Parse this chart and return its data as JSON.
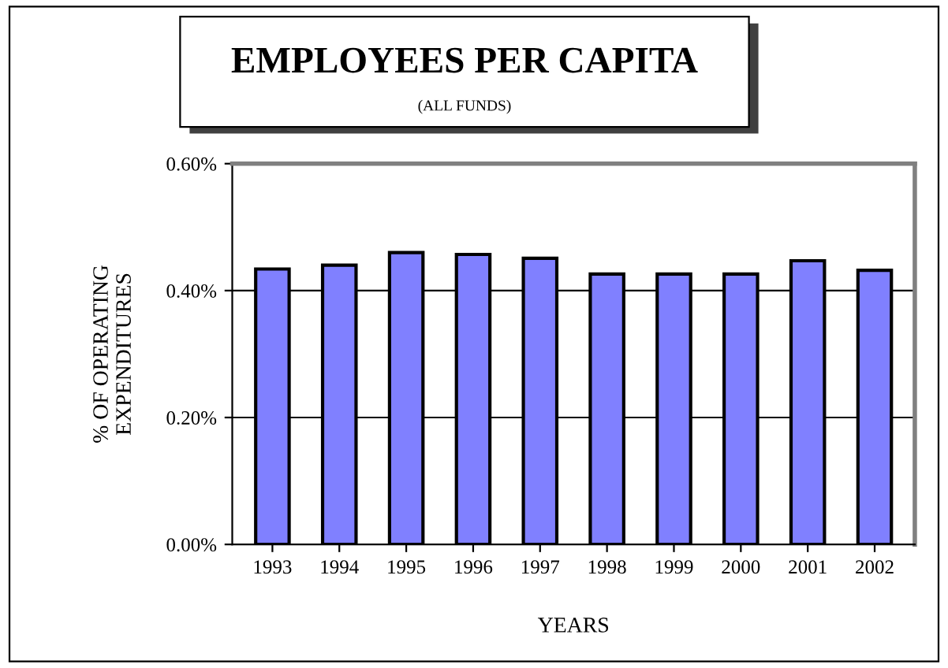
{
  "chart_data": {
    "type": "bar",
    "title": "EMPLOYEES PER CAPITA",
    "subtitle": "(ALL FUNDS)",
    "xlabel": "YEARS",
    "ylabel": "% OF OPERATING\nEXPENDITURES",
    "categories": [
      "1993",
      "1994",
      "1995",
      "1996",
      "1997",
      "1998",
      "1999",
      "2000",
      "2001",
      "2002"
    ],
    "values": [
      0.434,
      0.44,
      0.46,
      0.457,
      0.451,
      0.426,
      0.426,
      0.426,
      0.447,
      0.432
    ],
    "color": "#8080ff",
    "ylim": [
      0,
      0.6
    ],
    "yticks": [
      {
        "value": 0,
        "label": "0.00%"
      },
      {
        "value": 0.2,
        "label": "0.20%"
      },
      {
        "value": 0.4,
        "label": "0.40%"
      },
      {
        "value": 0.6,
        "label": "0.60%"
      }
    ],
    "grid": "y"
  }
}
